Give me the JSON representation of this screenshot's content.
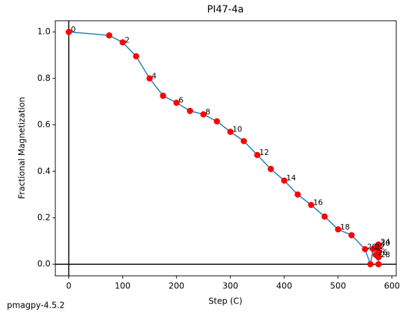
{
  "chart_data": {
    "type": "line",
    "title": "PI47-4a",
    "xlabel": "Step (C)",
    "ylabel": "Fractional Magnetization",
    "footer": "pmagpy-4.5.2",
    "x": [
      0,
      75,
      100,
      125,
      150,
      175,
      200,
      225,
      250,
      275,
      300,
      325,
      350,
      375,
      400,
      425,
      450,
      475,
      500,
      525,
      550,
      560,
      565,
      570,
      575,
      575,
      570,
      575,
      575,
      575,
      575
    ],
    "series": [
      {
        "name": "PI47-4a",
        "color": "#1f77b4",
        "marker_color": "#ff0000",
        "values": [
          1.0,
          0.985,
          0.955,
          0.895,
          0.8,
          0.725,
          0.695,
          0.66,
          0.645,
          0.615,
          0.57,
          0.53,
          0.47,
          0.41,
          0.36,
          0.3,
          0.255,
          0.205,
          0.15,
          0.125,
          0.065,
          0.0,
          0.065,
          0.07,
          0.085,
          0.075,
          0.04,
          0.05,
          0.03,
          0.0,
          0.08
        ]
      }
    ],
    "point_labels": [
      "0",
      null,
      "2",
      null,
      "4",
      null,
      "6",
      null,
      "8",
      null,
      "10",
      null,
      "12",
      null,
      "14",
      null,
      "16",
      null,
      "18",
      null,
      "20",
      null,
      "22",
      null,
      "24",
      null,
      "26",
      null,
      "28",
      null,
      "30"
    ],
    "xlim": [
      -25,
      608
    ],
    "ylim": [
      -0.05,
      1.048
    ],
    "xticks": [
      0,
      100,
      200,
      300,
      400,
      500,
      600
    ],
    "yticks": [
      {
        "value": 0,
        "label": "0.0"
      },
      0.2,
      0.4,
      0.6,
      0.8,
      {
        "value": 1,
        "label": "1.0"
      }
    ],
    "zero_lines": true
  }
}
